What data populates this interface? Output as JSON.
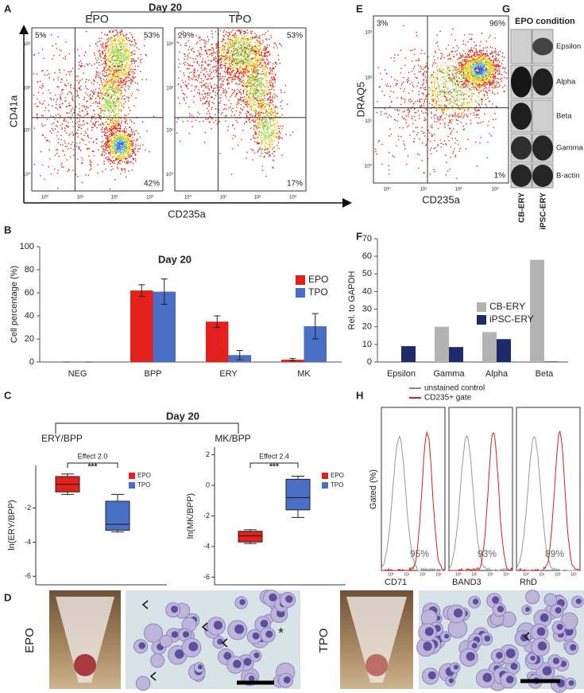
{
  "panel_labels": [
    "A",
    "B",
    "C",
    "D",
    "E",
    "F",
    "G",
    "H"
  ],
  "panel_a": {
    "title": "Day 20",
    "x_label": "CD235a",
    "y_label": "CD41a",
    "tick_labels": [
      "10⁰",
      "10¹",
      "10²",
      "10³"
    ],
    "plots": [
      {
        "name": "EPO",
        "quadrants": [
          "5%",
          "53%",
          "42%"
        ]
      },
      {
        "name": "TPO",
        "quadrants": [
          "29%",
          "53%",
          "17%"
        ]
      }
    ]
  },
  "panel_e": {
    "x_label": "CD235a",
    "y_label": "DRAQ5",
    "quadrants": [
      "3%",
      "96%",
      "1%"
    ]
  },
  "panel_g": {
    "title": "EPO condition",
    "rows": [
      "Epsilon",
      "Alpha",
      "Beta",
      "Gamma",
      "B-actin"
    ],
    "lanes": [
      "CB-ERY",
      "iPSC-ERY"
    ]
  },
  "panel_c": {
    "title": "Day 20"
  },
  "panel_h": {
    "y_label": "Gated (%)",
    "legend": [
      "unstained control",
      "CD235+ gate"
    ],
    "plots": [
      {
        "marker": "CD71",
        "gated": "95%"
      },
      {
        "marker": "BAND3",
        "gated": "93%"
      },
      {
        "marker": "RhD",
        "gated": "89%"
      }
    ]
  },
  "panel_d": {
    "conditions": [
      "EPO",
      "TPO"
    ],
    "annotation": "*"
  },
  "chart_data": [
    {
      "type": "bar",
      "title": "Day 20",
      "y_label": "Cell percentage (%)",
      "categories": [
        "NEG",
        "BPP",
        "ERY",
        "MK"
      ],
      "series": [
        {
          "name": "EPO",
          "color": "#e3201b",
          "values": [
            0,
            62,
            35,
            2
          ],
          "errors": [
            0,
            5,
            5,
            1
          ]
        },
        {
          "name": "TPO",
          "color": "#4a6fc6",
          "values": [
            0,
            61,
            6,
            31
          ],
          "errors": [
            0,
            11,
            4,
            11
          ]
        }
      ],
      "ylim": [
        0,
        100
      ],
      "yticks": [
        0,
        20,
        40,
        60,
        80,
        100
      ]
    },
    {
      "type": "bar",
      "y_label": "Rel. to GAPDH",
      "categories": [
        "Epsilon",
        "Gamma",
        "Alpha",
        "Beta"
      ],
      "series": [
        {
          "name": "CB-ERY",
          "color": "#b3b3b3",
          "values": [
            0,
            20,
            17,
            58
          ]
        },
        {
          "name": "iPSC-ERY",
          "color": "#1f2a6b",
          "values": [
            9,
            8.5,
            13,
            0.3
          ]
        }
      ],
      "ylim": [
        0,
        70
      ],
      "yticks": [
        0,
        10,
        20,
        30,
        40,
        50,
        60,
        70
      ]
    },
    {
      "type": "box",
      "title": "ERY/BPP",
      "y_label": "ln(ERY/BPP)",
      "annotation": "Effect 2.0",
      "significance": "***",
      "series": [
        {
          "name": "EPO",
          "color": "#e3201b",
          "whislo": -1.2,
          "q1": -1.05,
          "med": -0.6,
          "q3": -0.15,
          "whishi": 0
        },
        {
          "name": "TPO",
          "color": "#4a6fc6",
          "whislo": -3.4,
          "q1": -3.3,
          "med": -2.95,
          "q3": -1.6,
          "whishi": -1.2
        }
      ],
      "ylim": [
        -6.5,
        0.5
      ],
      "yticks": [
        -2,
        -4,
        -6
      ]
    },
    {
      "type": "box",
      "title": "MK/BPP",
      "y_label": "ln(MK/BPP)",
      "annotation": "Effect 2.4",
      "significance": "***",
      "series": [
        {
          "name": "EPO",
          "color": "#e3201b",
          "whislo": -3.8,
          "q1": -3.7,
          "med": -3.3,
          "q3": -3.0,
          "whishi": -2.9
        },
        {
          "name": "TPO",
          "color": "#4a6fc6",
          "whislo": -2.1,
          "q1": -1.6,
          "med": -0.8,
          "q3": 0.4,
          "whishi": 0.6
        }
      ],
      "ylim": [
        -6.5,
        2.5
      ],
      "yticks": [
        2,
        0,
        -2,
        -4,
        -6
      ]
    }
  ]
}
